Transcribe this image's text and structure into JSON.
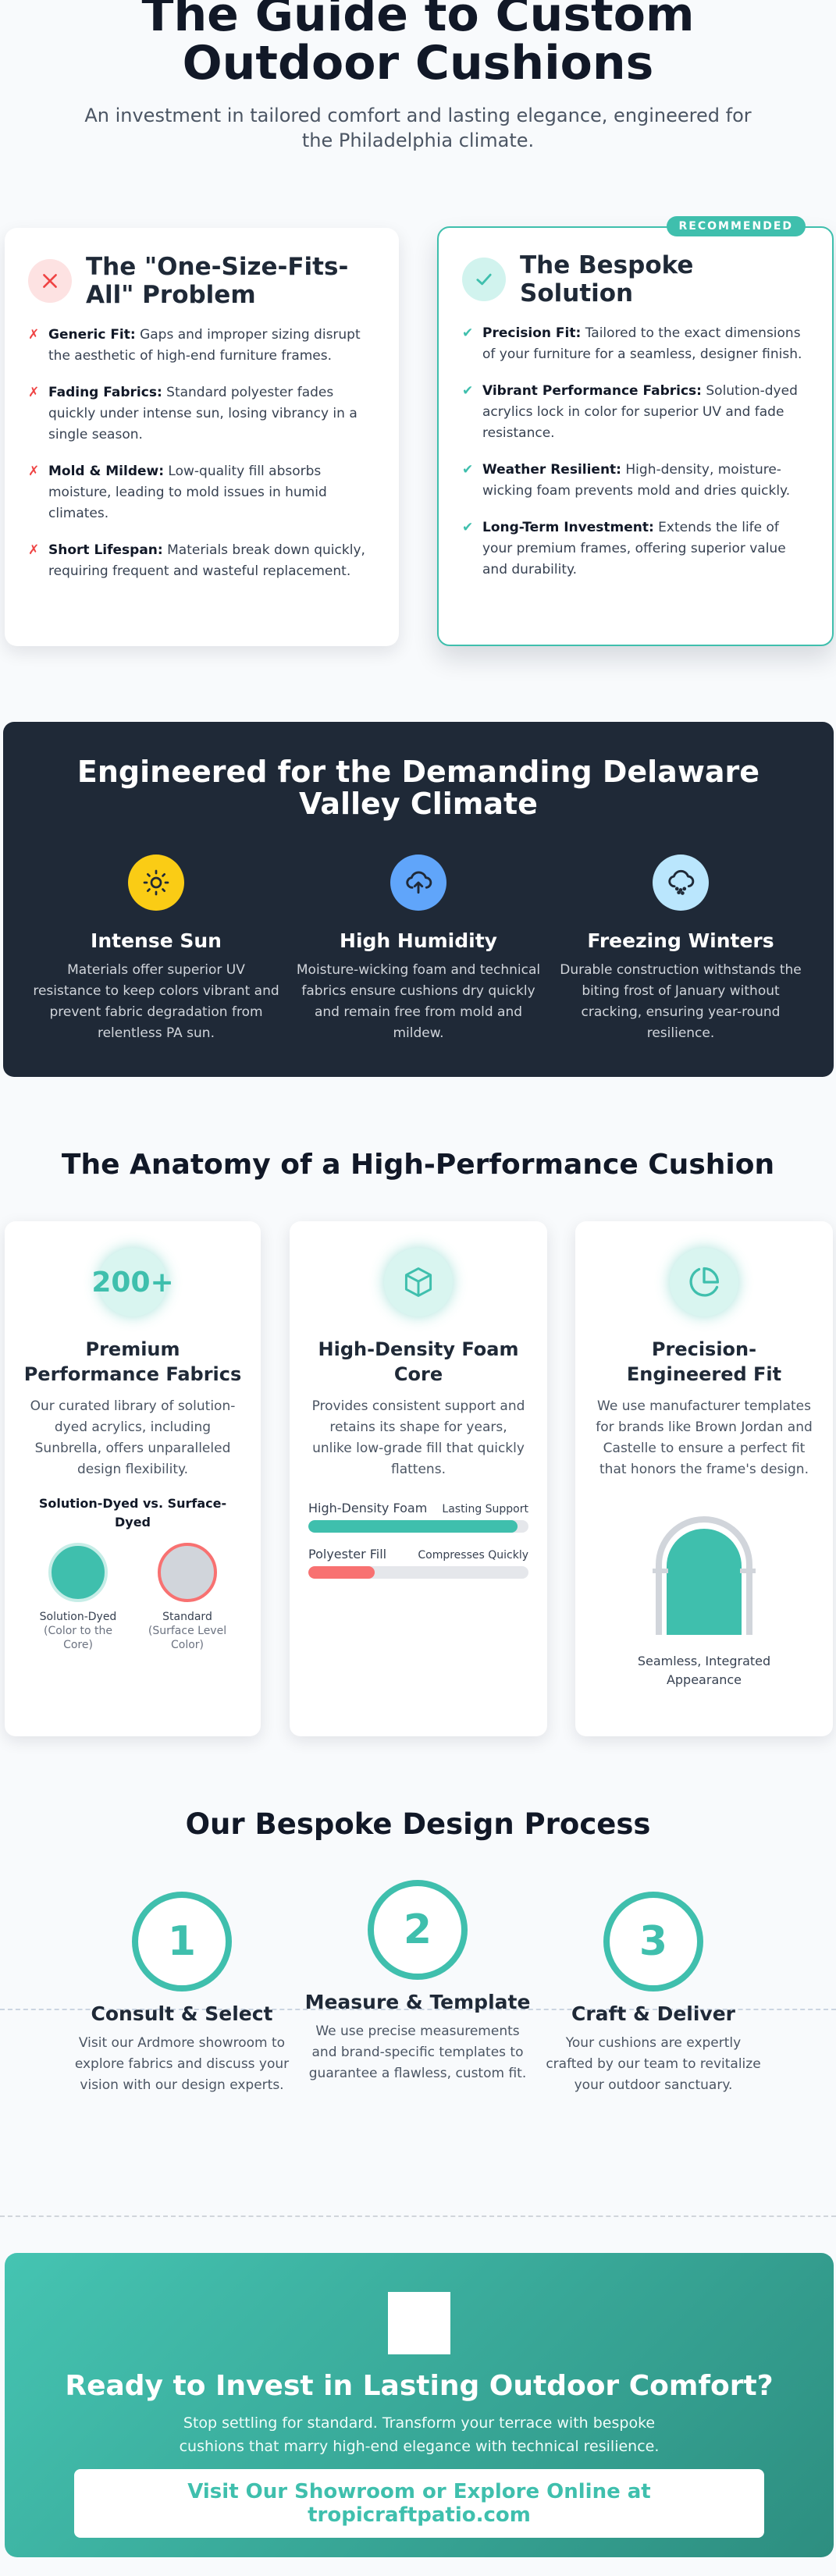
{
  "hero": {
    "title": "The Guide to Custom Outdoor Cushions",
    "subtitle": "An investment in tailored comfort and lasting elegance, engineered for the Philadelphia climate."
  },
  "problem": {
    "title": "The \"One-Size-Fits-All\" Problem",
    "icon": "close-icon",
    "items": [
      {
        "term": "Generic Fit:",
        "text": " Gaps and improper sizing disrupt the aesthetic of high-end furniture frames."
      },
      {
        "term": "Fading Fabrics:",
        "text": " Standard polyester fades quickly under intense sun, losing vibrancy in a single season."
      },
      {
        "term": "Mold & Mildew:",
        "text": " Low-quality fill absorbs moisture, leading to mold issues in humid climates."
      },
      {
        "term": "Short Lifespan:",
        "text": " Materials break down quickly, requiring frequent and wasteful replacement."
      }
    ]
  },
  "solution": {
    "badge": "RECOMMENDED",
    "title": "The Bespoke Solution",
    "icon": "check-icon",
    "items": [
      {
        "term": "Precision Fit:",
        "text": " Tailored to the exact dimensions of your furniture for a seamless, designer finish."
      },
      {
        "term": "Vibrant Performance Fabrics:",
        "text": " Solution-dyed acrylics lock in color for superior UV and fade resistance."
      },
      {
        "term": "Weather Resilient:",
        "text": " High-density, moisture-wicking foam prevents mold and dries quickly."
      },
      {
        "term": "Long-Term Investment:",
        "text": " Extends the life of your premium frames, offering superior value and durability."
      }
    ]
  },
  "climate": {
    "title": "Engineered for the Demanding Delaware Valley Climate",
    "cols": [
      {
        "icon": "sun-icon",
        "title": "Intense Sun",
        "text": "Materials offer superior UV resistance to keep colors vibrant and prevent fabric degradation from relentless PA sun."
      },
      {
        "icon": "cloud-drop-icon",
        "title": "High Humidity",
        "text": "Moisture-wicking foam and technical fabrics ensure cushions dry quickly and remain free from mold and mildew."
      },
      {
        "icon": "snow-cloud-icon",
        "title": "Freezing Winters",
        "text": "Durable construction withstands the biting frost of January without cracking, ensuring year-round resilience."
      }
    ]
  },
  "anatomy": {
    "title": "The Anatomy of a High-Performance Cushion",
    "fabrics": {
      "stat": "200+",
      "title": "Premium Performance Fabrics",
      "text": "Our curated library of solution-dyed acrylics, including Sunbrella, offers unparalleled design flexibility.",
      "compare_title": "Solution-Dyed vs. Surface-Dyed",
      "left_label": "Solution-Dyed",
      "left_sub": "(Color to the Core)",
      "right_label": "Standard",
      "right_sub": "(Surface Level Color)"
    },
    "foam": {
      "icon": "cube-icon",
      "title": "High-Density Foam Core",
      "text": "Provides consistent support and retains its shape for years, unlike low-grade fill that quickly flattens.",
      "bar1_label": "High-Density Foam",
      "bar1_right": "Lasting Support",
      "bar1_level": 0.95,
      "bar2_label": "Polyester Fill",
      "bar2_right": "Compresses Quickly",
      "bar2_level": 0.3
    },
    "fit": {
      "icon": "pie-chart-icon",
      "title": "Precision-Engineered Fit",
      "text": "We use manufacturer templates for brands like Brown Jordan and Castelle to ensure a perfect fit that honors the frame's design.",
      "caption": "Seamless, Integrated Appearance"
    }
  },
  "process": {
    "title": "Our Bespoke Design Process",
    "steps": [
      {
        "num": "1",
        "title": "Consult & Select",
        "text": "Visit our Ardmore showroom to explore fabrics and discuss your vision with our design experts."
      },
      {
        "num": "2",
        "title": "Measure & Template",
        "text": "We use precise measurements and brand-specific templates to guarantee a flawless, custom fit."
      },
      {
        "num": "3",
        "title": "Craft & Deliver",
        "text": "Your cushions are expertly crafted by our team to revitalize your outdoor sanctuary."
      }
    ]
  },
  "cta": {
    "title": "Ready to Invest in Lasting Outdoor Comfort?",
    "text": "Stop settling for standard. Transform your terrace with bespoke cushions that marry high-end elegance with technical resilience.",
    "button": "Visit Our Showroom or Explore Online at tropicraftpatio.com"
  },
  "colors": {
    "accent": "#3fbfad",
    "problem": "#ef4444",
    "dark": "#1f2937",
    "sun": "#facc15",
    "humidity": "#60a5fa",
    "winter": "#bae6fd"
  }
}
